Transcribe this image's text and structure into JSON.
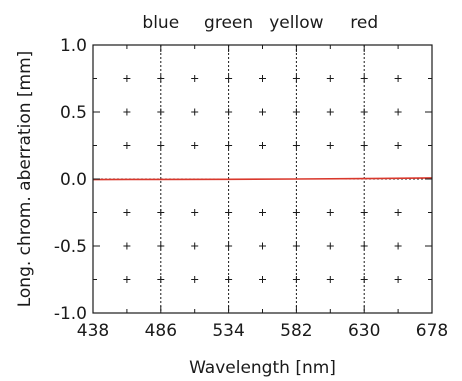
{
  "chart_data": {
    "type": "line",
    "title": "",
    "xlabel": "Wavelength [nm]",
    "ylabel": "Long. chrom. aberration [mm]",
    "xlim": [
      438,
      678
    ],
    "ylim": [
      -1.0,
      1.0
    ],
    "x_ticks": [
      438,
      486,
      534,
      582,
      630,
      678
    ],
    "x_tick_labels": [
      "438",
      "486",
      "534",
      "582",
      "630",
      "678"
    ],
    "y_ticks": [
      1.0,
      0.5,
      0.0,
      -0.5,
      -1.0
    ],
    "y_tick_labels": [
      "1.0",
      "0.5",
      "0.0",
      "-0.5",
      "-1.0"
    ],
    "grid": "dotted lines at x ticks and y = 0, plus markers at minor grid intersections",
    "band_labels": [
      {
        "text": "blue",
        "x": 486
      },
      {
        "text": "green",
        "x": 534
      },
      {
        "text": "yellow",
        "x": 582
      },
      {
        "text": "red",
        "x": 630
      }
    ],
    "series": [
      {
        "color": "#d9382c",
        "x": [
          438,
          486,
          534,
          582,
          630,
          678
        ],
        "y": [
          -0.004,
          -0.003,
          -0.002,
          0.0,
          0.003,
          0.008
        ]
      }
    ],
    "colors": {
      "axis": "#1a1a1a",
      "grid": "#1a1a1a",
      "line": "#d9382c"
    }
  }
}
